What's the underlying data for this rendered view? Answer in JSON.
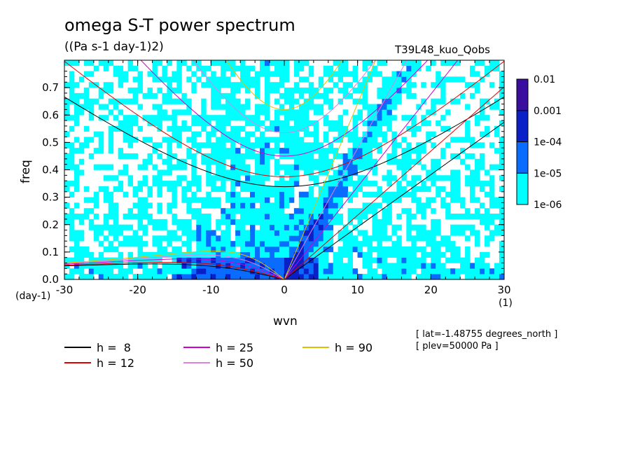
{
  "title": "omega S-T power spectrum",
  "subtitle": "((Pa s-1 day-1)2)",
  "run_name": "T39L48_kuo_Qobs",
  "x_units_left": "(day-1)",
  "x_units_right": "(1)",
  "meta": [
    "[ lat=-1.48755 degrees_north ]",
    "[ plev=50000 Pa ]"
  ],
  "chart_data": {
    "type": "heatmap",
    "title": "omega S-T power spectrum",
    "subtitle": "((Pa s-1 day-1)2)",
    "xlabel": "wvn",
    "ylabel": "freq",
    "xlim": [
      -30,
      30
    ],
    "ylim": [
      0,
      0.8
    ],
    "x_ticks": [
      -30,
      -20,
      -10,
      0,
      10,
      20,
      30
    ],
    "x_tick_labels": [
      "-30",
      "-20",
      "-10",
      "0",
      "10",
      "20",
      "30"
    ],
    "y_ticks": [
      0,
      0.1,
      0.2,
      0.3,
      0.4,
      0.5,
      0.6,
      0.7
    ],
    "y_tick_labels": [
      "0.0",
      "0.1",
      "0.2",
      "0.3",
      "0.4",
      "0.5",
      "0.6",
      "0.7"
    ],
    "colorbar": {
      "levels": [
        "1e-06",
        "1e-05",
        "1e-04",
        "0.001",
        "0.01"
      ],
      "colors": [
        "#00ffff",
        "#0a6bff",
        "#0b1fc8",
        "#3a0fa0"
      ]
    },
    "dispersion_curves": [
      {
        "h": "h =  8",
        "color": "#000000"
      },
      {
        "h": "h = 12",
        "color": "#e00000"
      },
      {
        "h": "h = 25",
        "color": "#d000d0"
      },
      {
        "h": "h = 50",
        "color": "#e080e0"
      },
      {
        "h": "h = 90",
        "color": "#e0c000"
      }
    ]
  }
}
